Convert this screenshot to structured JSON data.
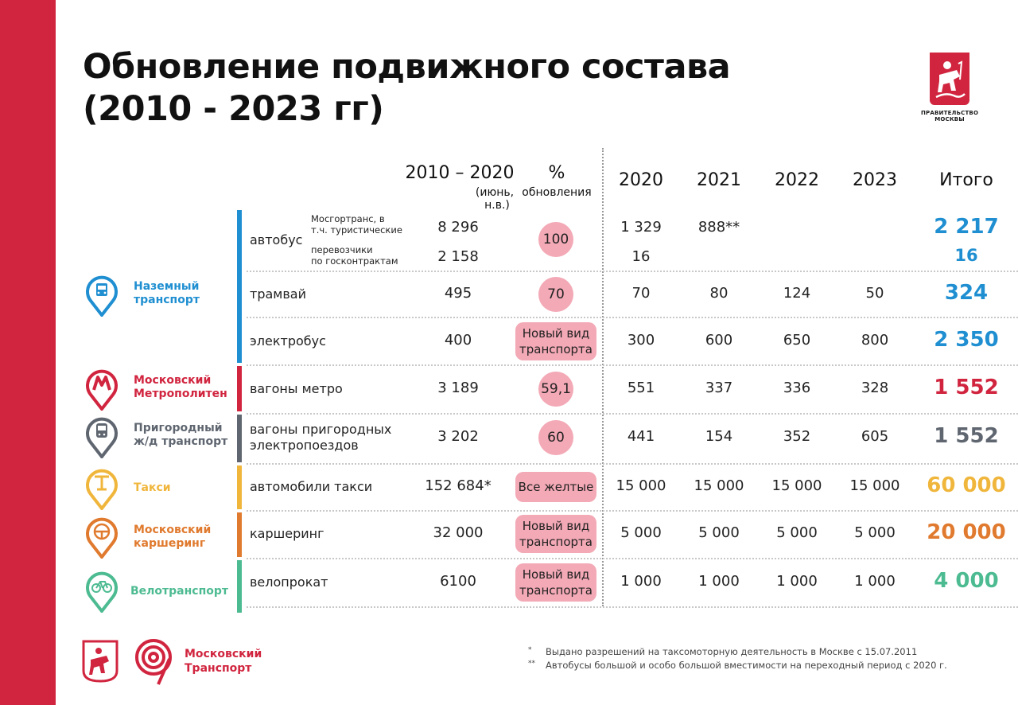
{
  "title_line1": "Обновление подвижного состава",
  "title_line2": "(2010 - 2023 гг)",
  "gov_logo": {
    "line1": "ПРАВИТЕЛЬСТВО",
    "line2": "МОСКВЫ"
  },
  "header": {
    "period": "2010 – 2020",
    "period_sub": "(июнь,",
    "period_sub2": "н.в.)",
    "percent": "%",
    "percent_sub": "обновления",
    "y2020": "2020",
    "y2021": "2021",
    "y2022": "2022",
    "y2023": "2023",
    "total": "Итого"
  },
  "categories": [
    {
      "name1": "Наземный",
      "name2": "транспорт",
      "icon": "bus-pin-icon",
      "color": "#1f8fd1"
    },
    {
      "name1": "Московский",
      "name2": "Метрополитен",
      "icon": "metro-pin-icon",
      "color": "#d1253f"
    },
    {
      "name1": "Пригородный",
      "name2": "ж/д транспорт",
      "icon": "train-pin-icon",
      "color": "#5f6670"
    },
    {
      "name1": "Такси",
      "name2": "",
      "icon": "taxi-pin-icon",
      "color": "#f0b63c"
    },
    {
      "name1": "Московский",
      "name2": "каршеринг",
      "icon": "wheel-pin-icon",
      "color": "#e07a2e"
    },
    {
      "name1": "Велотранспорт",
      "name2": "",
      "icon": "bike-pin-icon",
      "color": "#4dbb92"
    }
  ],
  "bus": {
    "label": "автобус",
    "sub1_line1": "Мосгортранс, в",
    "sub1_line2": "т.ч. туристические",
    "sub2_line1": "перевозчики",
    "sub2_line2": "по госконтрактам",
    "r1_period": "8 296",
    "r2_period": "2 158",
    "percent": "100",
    "r1_2020": "1 329",
    "r1_2021": "888**",
    "r2_2020": "16",
    "r1_total": "2 217",
    "r2_total": "16"
  },
  "rows": [
    {
      "label1": "трамвай",
      "label2": "",
      "period": "495",
      "percent": "70",
      "pill": "circle",
      "y2020": "70",
      "y2021": "80",
      "y2022": "124",
      "y2023": "50",
      "total": "324",
      "color": "#1f8fd1"
    },
    {
      "label1": "электробус",
      "label2": "",
      "period": "400",
      "percent": "Новый вид",
      "percent2": "транспорта",
      "pill": "rect",
      "y2020": "300",
      "y2021": "600",
      "y2022": "650",
      "y2023": "800",
      "total": "2 350",
      "color": "#1f8fd1"
    },
    {
      "label1": "вагоны метро",
      "label2": "",
      "period": "3 189",
      "percent": "59,1",
      "pill": "circle",
      "y2020": "551",
      "y2021": "337",
      "y2022": "336",
      "y2023": "328",
      "total": "1 552",
      "color": "#d1253f"
    },
    {
      "label1": "вагоны пригородных",
      "label2": "электропоездов",
      "period": "3 202",
      "percent": "60",
      "pill": "circle",
      "y2020": "441",
      "y2021": "154",
      "y2022": "352",
      "y2023": "605",
      "total": "1 552",
      "color": "#5f6670"
    },
    {
      "label1": "автомобили такси",
      "label2": "",
      "period": "152 684*",
      "percent": "Все желтые",
      "pill": "rect1",
      "y2020": "15 000",
      "y2021": "15 000",
      "y2022": "15 000",
      "y2023": "15 000",
      "total": "60 000",
      "color": "#f0b63c"
    },
    {
      "label1": "каршеринг",
      "label2": "",
      "period": "32 000",
      "percent": "Новый вид",
      "percent2": "транспорта",
      "pill": "rect",
      "y2020": "5 000",
      "y2021": "5 000",
      "y2022": "5 000",
      "y2023": "5 000",
      "total": "20 000",
      "color": "#e07a2e"
    },
    {
      "label1": "велопрокат",
      "label2": "",
      "period": "6100",
      "percent": "Новый вид",
      "percent2": "транспорта",
      "pill": "rect",
      "y2020": "1 000",
      "y2021": "1 000",
      "y2022": "1 000",
      "y2023": "1 000",
      "total": "4 000",
      "color": "#4dbb92"
    }
  ],
  "footer": {
    "brand1": "Московский",
    "brand2": "Транспорт",
    "note1_mark": "*",
    "note1": "Выдано разрешений на таксомоторную деятельность в Москве с 15.07.2011",
    "note2_mark": "**",
    "note2": "Автобусы большой и особо большой вместимости на переходный период с 2020 г."
  }
}
